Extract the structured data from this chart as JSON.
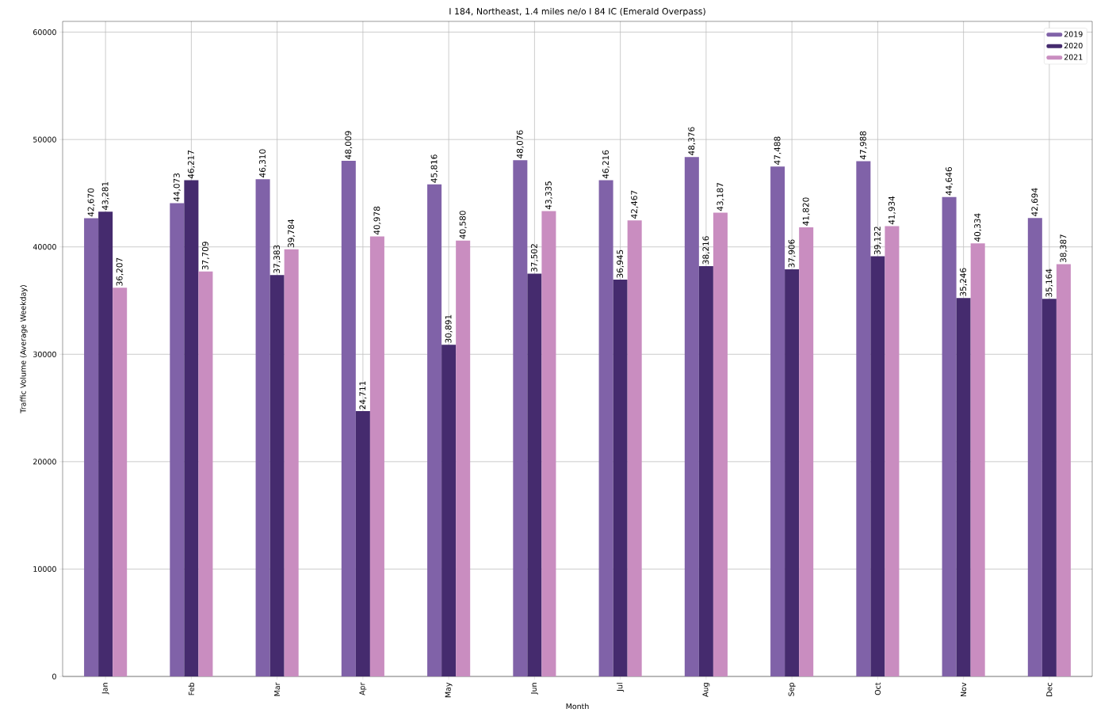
{
  "chart_data": {
    "type": "bar",
    "title": "I 184, Northeast, 1.4 miles ne/o I 84 IC (Emerald Overpass)",
    "xlabel": "Month",
    "ylabel": "Traffic Volume (Average Weekday)",
    "categories": [
      "Jan",
      "Feb",
      "Mar",
      "Apr",
      "May",
      "Jun",
      "Jul",
      "Aug",
      "Sep",
      "Oct",
      "Nov",
      "Dec"
    ],
    "series": [
      {
        "name": "2019",
        "color": "#8062a8",
        "values": [
          42670,
          44073,
          46310,
          48009,
          45816,
          48076,
          46216,
          48376,
          47488,
          47988,
          44646,
          42694
        ],
        "value_labels": [
          "42,670",
          "44,073",
          "46,310",
          "48,009",
          "45,816",
          "48,076",
          "46,216",
          "48,376",
          "47,488",
          "47,988",
          "44,646",
          "42,694"
        ]
      },
      {
        "name": "2020",
        "color": "#452b6e",
        "values": [
          43281,
          46217,
          37383,
          24711,
          30891,
          37502,
          36945,
          38216,
          37906,
          39122,
          35246,
          35164
        ],
        "value_labels": [
          "43,281",
          "46,217",
          "37,383",
          "24,711",
          "30,891",
          "37,502",
          "36,945",
          "38,216",
          "37,906",
          "39,122",
          "35,246",
          "35,164"
        ]
      },
      {
        "name": "2021",
        "color": "#c98dc0",
        "values": [
          36207,
          37709,
          39784,
          40978,
          40580,
          43335,
          42467,
          43187,
          41820,
          41934,
          40334,
          38387
        ],
        "value_labels": [
          "36,207",
          "37,709",
          "39,784",
          "40,978",
          "40,580",
          "43,335",
          "42,467",
          "43,187",
          "41,820",
          "41,934",
          "40,334",
          "38,387"
        ]
      }
    ],
    "ylim": [
      0,
      61000
    ],
    "yticks": [
      0,
      10000,
      20000,
      30000,
      40000,
      50000,
      60000
    ],
    "grid": true,
    "legend": "top right"
  }
}
